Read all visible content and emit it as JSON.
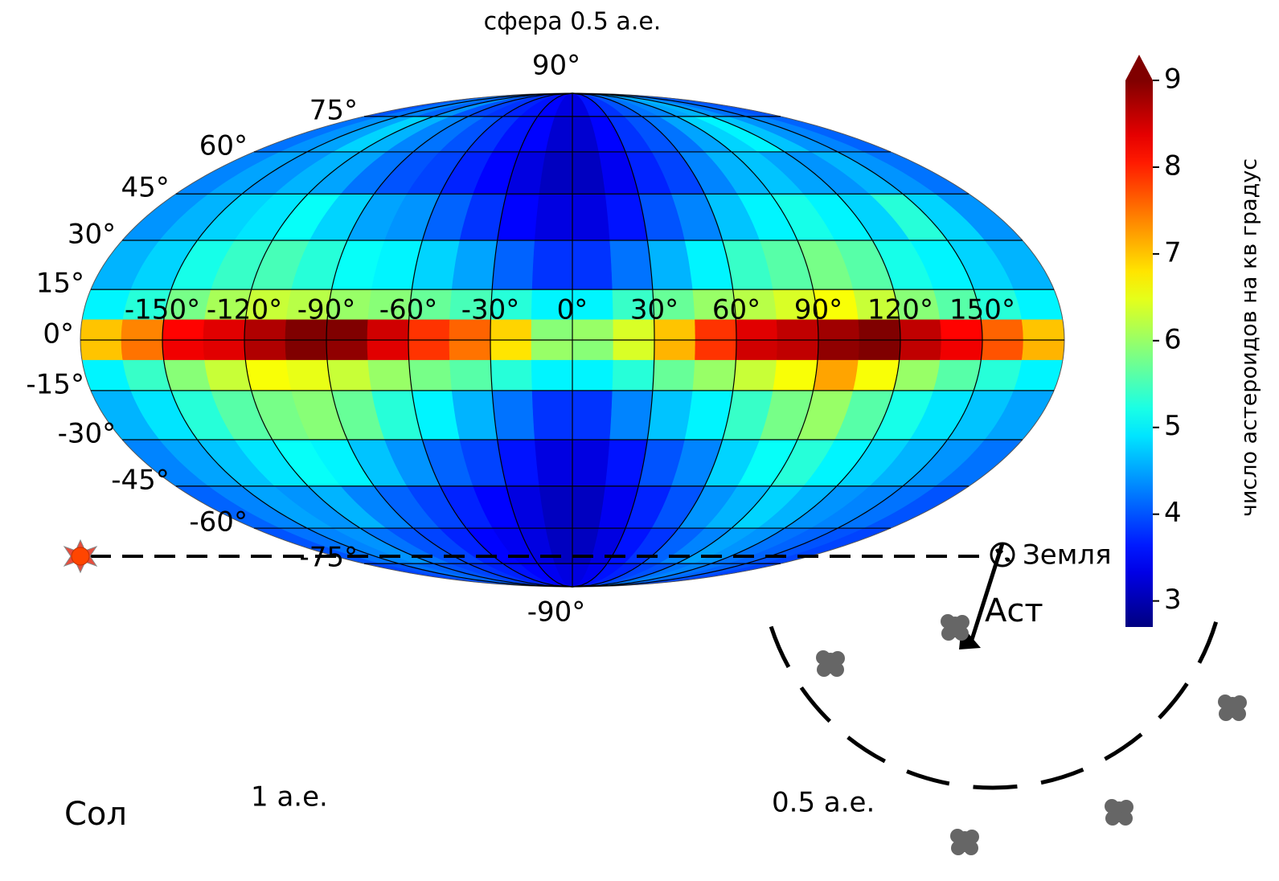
{
  "chart_data": {
    "type": "mollweide_heatmap",
    "title": "сфера 0.5 а.е.",
    "colormap": "jet",
    "clim": [
      2.7,
      9
    ],
    "lon_edges": [
      -180,
      -165,
      -150,
      -135,
      -120,
      -105,
      -90,
      -75,
      -60,
      -45,
      -30,
      -15,
      0,
      15,
      30,
      45,
      60,
      75,
      90,
      105,
      120,
      135,
      150,
      165,
      180
    ],
    "lat_edges": [
      90,
      75,
      60,
      45,
      30,
      15,
      6,
      0,
      -6,
      -15,
      -30,
      -45,
      -60,
      -75,
      -90
    ],
    "z": [
      [
        4.0,
        4.2,
        4.3,
        4.1,
        4.4,
        4.0,
        3.9,
        3.8,
        3.7,
        3.6,
        3.5,
        3.3,
        3.3,
        3.6,
        3.8,
        4.0,
        4.2,
        4.3,
        4.5,
        4.6,
        4.4,
        4.2,
        4.1,
        4.0
      ],
      [
        4.2,
        4.4,
        4.5,
        4.8,
        4.6,
        4.3,
        4.2,
        4.0,
        3.8,
        3.6,
        3.5,
        3.2,
        3.2,
        3.5,
        3.8,
        4.0,
        4.2,
        4.5,
        4.8,
        5.0,
        4.7,
        4.4,
        4.3,
        4.1
      ],
      [
        4.3,
        4.5,
        4.4,
        4.6,
        4.5,
        4.2,
        4.0,
        3.9,
        3.7,
        3.5,
        3.3,
        3.1,
        3.1,
        3.4,
        3.7,
        3.9,
        4.3,
        4.6,
        4.7,
        4.5,
        4.4,
        4.6,
        4.4,
        4.2
      ],
      [
        4.4,
        4.6,
        4.8,
        4.9,
        5.1,
        4.8,
        4.5,
        4.4,
        4.1,
        3.8,
        3.5,
        3.3,
        3.3,
        3.6,
        4.0,
        4.3,
        4.7,
        5.0,
        5.2,
        5.0,
        4.8,
        5.3,
        4.8,
        4.4
      ],
      [
        4.6,
        4.8,
        5.2,
        5.4,
        5.5,
        5.3,
        5.1,
        5.0,
        4.8,
        4.5,
        4.1,
        3.8,
        3.8,
        4.2,
        4.6,
        5.0,
        5.4,
        5.6,
        5.8,
        5.6,
        5.2,
        5.0,
        4.8,
        4.6
      ],
      [
        5.0,
        5.3,
        5.8,
        6.1,
        6.3,
        6.2,
        6.0,
        5.9,
        5.7,
        5.5,
        5.3,
        5.0,
        5.0,
        5.4,
        5.7,
        6.0,
        6.2,
        6.4,
        6.6,
        6.3,
        5.9,
        5.6,
        5.3,
        5.0
      ],
      [
        7.0,
        7.4,
        8.2,
        8.4,
        8.7,
        9.0,
        9.0,
        8.5,
        7.9,
        7.6,
        6.9,
        5.9,
        6.0,
        6.4,
        7.0,
        7.9,
        8.4,
        8.6,
        8.8,
        9.0,
        8.6,
        8.2,
        7.6,
        7.0
      ],
      [
        7.0,
        7.5,
        8.3,
        8.4,
        8.7,
        9.0,
        8.9,
        8.4,
        7.9,
        7.5,
        6.8,
        6.0,
        5.9,
        6.4,
        7.1,
        7.9,
        8.5,
        8.6,
        8.9,
        9.0,
        8.6,
        8.3,
        7.7,
        7.1
      ],
      [
        5.0,
        5.4,
        5.9,
        6.3,
        6.6,
        6.5,
        6.3,
        6.0,
        5.8,
        5.6,
        5.3,
        5.0,
        5.0,
        5.3,
        5.7,
        6.0,
        6.3,
        6.6,
        7.2,
        6.6,
        6.0,
        5.6,
        5.3,
        5.0
      ],
      [
        4.6,
        4.9,
        5.3,
        5.6,
        5.8,
        5.9,
        5.7,
        5.3,
        5.0,
        4.6,
        4.2,
        3.8,
        3.8,
        4.3,
        4.7,
        5.0,
        5.4,
        5.8,
        6.0,
        5.6,
        5.2,
        4.9,
        4.7,
        4.5
      ],
      [
        4.3,
        4.5,
        4.7,
        4.9,
        5.1,
        5.0,
        4.7,
        4.4,
        4.1,
        3.9,
        3.6,
        3.3,
        3.3,
        3.6,
        4.0,
        4.3,
        4.8,
        5.1,
        5.3,
        5.0,
        4.8,
        4.6,
        4.4,
        4.2
      ],
      [
        4.1,
        4.3,
        4.5,
        4.4,
        4.6,
        4.3,
        4.1,
        3.9,
        3.7,
        3.5,
        3.3,
        3.1,
        3.1,
        3.4,
        3.7,
        4.0,
        4.4,
        4.6,
        4.8,
        4.6,
        4.4,
        4.3,
        4.2,
        4.0
      ],
      [
        4.0,
        4.2,
        4.3,
        4.4,
        4.2,
        4.0,
        3.9,
        3.7,
        3.5,
        3.4,
        3.3,
        3.1,
        3.1,
        3.3,
        3.6,
        3.8,
        4.1,
        4.3,
        4.5,
        4.4,
        4.2,
        4.1,
        4.0,
        3.9
      ],
      [
        3.9,
        4.0,
        4.2,
        4.1,
        4.0,
        3.9,
        3.8,
        3.7,
        3.6,
        3.5,
        3.4,
        3.3,
        3.3,
        3.4,
        3.6,
        3.7,
        3.9,
        4.0,
        4.2,
        4.3,
        4.2,
        4.1,
        4.0,
        3.9
      ]
    ],
    "lat_ticks": [
      {
        "value": 90,
        "label": "90°"
      },
      {
        "value": 75,
        "label": "75°"
      },
      {
        "value": 60,
        "label": "60°"
      },
      {
        "value": 45,
        "label": "45°"
      },
      {
        "value": 30,
        "label": "30°"
      },
      {
        "value": 15,
        "label": "15°"
      },
      {
        "value": 0,
        "label": "0°"
      },
      {
        "value": -15,
        "label": "-15°"
      },
      {
        "value": -30,
        "label": "-30°"
      },
      {
        "value": -45,
        "label": "-45°"
      },
      {
        "value": -60,
        "label": "-60°"
      },
      {
        "value": -75,
        "label": "-75°"
      },
      {
        "value": -90,
        "label": "-90°"
      }
    ],
    "lon_ticks": [
      {
        "value": -150,
        "label": "-150°"
      },
      {
        "value": -120,
        "label": "-120°"
      },
      {
        "value": -90,
        "label": "-90°"
      },
      {
        "value": -60,
        "label": "-60°"
      },
      {
        "value": -30,
        "label": "-30°"
      },
      {
        "value": 0,
        "label": "0°"
      },
      {
        "value": 30,
        "label": "30°"
      },
      {
        "value": 60,
        "label": "60°"
      },
      {
        "value": 90,
        "label": "90°"
      },
      {
        "value": 120,
        "label": "120°"
      },
      {
        "value": 150,
        "label": "150°"
      }
    ],
    "grid": true,
    "colorbar_label": "число астероидов на кв градус",
    "cbar_ticks": [
      3,
      4,
      5,
      6,
      7,
      8,
      9
    ]
  },
  "diagram": {
    "sun": "Сол",
    "sun_distance": "1 а.е.",
    "sphere_radius": "0.5 а.е.",
    "earth": "Земля",
    "asteroid": "Аст"
  }
}
